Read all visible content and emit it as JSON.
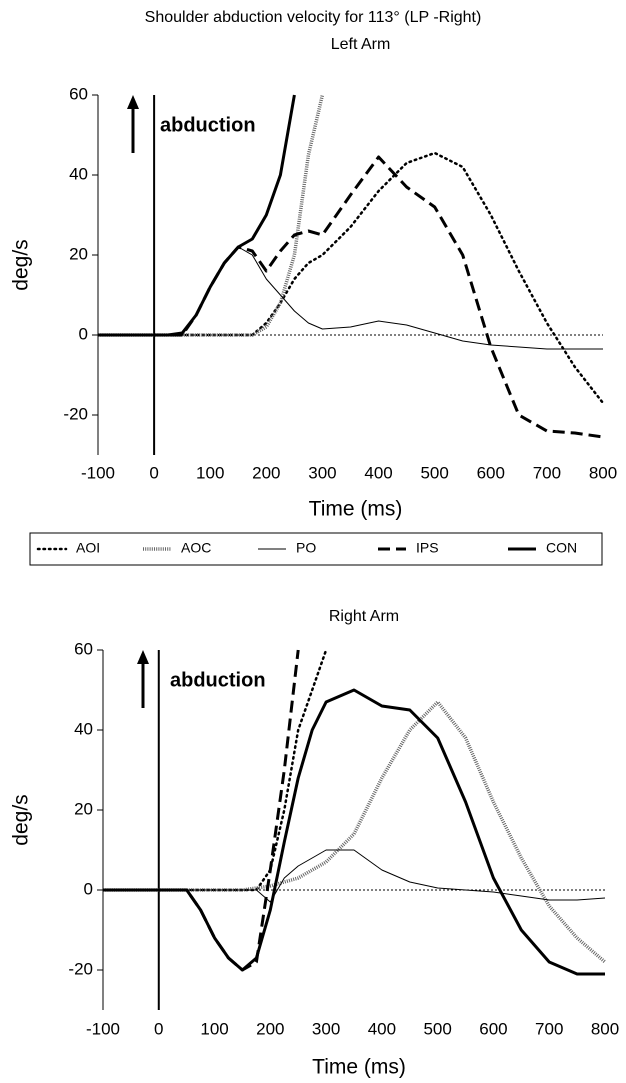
{
  "title": "Shoulder abduction velocity for 113° (LP -Right)",
  "chart_data": [
    {
      "type": "line",
      "title": "Left Arm",
      "xlabel": "Time (ms)",
      "ylabel": "deg/s",
      "annotation": "abduction",
      "x": [
        -100,
        -50,
        0,
        25,
        50,
        75,
        100,
        125,
        150,
        175,
        200,
        225,
        250,
        275,
        300,
        350,
        400,
        450,
        500,
        550,
        600,
        650,
        700,
        750,
        800
      ],
      "xlim": [
        -100,
        800
      ],
      "ylim": [
        -30,
        60
      ],
      "xticks": [
        -100,
        0,
        100,
        200,
        300,
        400,
        500,
        600,
        700,
        800
      ],
      "yticks": [
        -20,
        0,
        20,
        40,
        60
      ],
      "hlines": [
        0
      ],
      "vlines": [
        0
      ],
      "series": [
        {
          "name": "AOI",
          "style": "dotted",
          "color": "#000000",
          "values": [
            0,
            0,
            0,
            0,
            0,
            0,
            0,
            0,
            0,
            0,
            3,
            8,
            14,
            18,
            20,
            27,
            36,
            43,
            45.5,
            42,
            30,
            16,
            3,
            -8,
            -17
          ]
        },
        {
          "name": "AOC",
          "style": "hatched",
          "color": "#666666",
          "values": [
            0,
            0,
            0,
            0,
            0,
            0,
            0,
            0,
            0,
            0,
            2,
            8,
            20,
            45,
            60,
            null,
            null,
            null,
            null,
            null,
            null,
            null,
            null,
            null,
            null
          ]
        },
        {
          "name": "PO",
          "style": "thin",
          "color": "#000000",
          "values": [
            0,
            0,
            0,
            0,
            0,
            5,
            12,
            18,
            22,
            20,
            14,
            10,
            6,
            3,
            1.5,
            2,
            3.5,
            2.5,
            0.5,
            -1.5,
            -2.5,
            -3,
            -3.5,
            -3.5,
            -3.5
          ]
        },
        {
          "name": "IPS",
          "style": "dashed",
          "color": "#000000",
          "values": [
            0,
            0,
            0,
            0,
            0,
            5,
            12,
            18,
            22,
            21,
            16,
            21,
            25,
            26,
            25,
            35,
            44.5,
            37,
            32,
            20,
            -3,
            -20,
            -24,
            -24.5,
            -25.5
          ]
        },
        {
          "name": "CON",
          "style": "thick",
          "color": "#000000",
          "values": [
            0,
            0,
            0,
            0,
            0.5,
            5,
            12,
            18,
            22,
            24,
            30,
            40,
            60,
            null,
            null,
            null,
            null,
            null,
            null,
            null,
            null,
            null,
            null,
            null,
            null
          ]
        }
      ]
    },
    {
      "type": "line",
      "title": "Right Arm",
      "xlabel": "Time (ms)",
      "ylabel": "deg/s",
      "annotation": "abduction",
      "x": [
        -100,
        -50,
        0,
        25,
        50,
        75,
        100,
        125,
        150,
        175,
        200,
        225,
        250,
        275,
        300,
        350,
        400,
        450,
        500,
        550,
        600,
        650,
        700,
        750,
        800
      ],
      "xlim": [
        -100,
        800
      ],
      "ylim": [
        -30,
        60
      ],
      "xticks": [
        -100,
        0,
        100,
        200,
        300,
        400,
        500,
        600,
        700,
        800
      ],
      "yticks": [
        -20,
        0,
        20,
        40,
        60
      ],
      "hlines": [
        0
      ],
      "vlines": [
        0
      ],
      "series": [
        {
          "style": "dotted",
          "color": "#000000",
          "values": [
            0,
            0,
            0,
            0,
            0,
            0,
            0,
            0,
            0,
            0,
            5,
            20,
            40,
            50,
            60,
            null,
            null,
            null,
            null,
            null,
            null,
            null,
            null,
            null,
            null
          ]
        },
        {
          "style": "hatched",
          "color": "#666666",
          "values": [
            0,
            0,
            0,
            0,
            0,
            0,
            0,
            0,
            0,
            0.5,
            1,
            2,
            3,
            5,
            7,
            14,
            28,
            40,
            47,
            38,
            22,
            8,
            -4,
            -12,
            -18
          ]
        },
        {
          "style": "thin",
          "color": "#000000",
          "values": [
            0,
            0,
            0,
            0,
            0,
            0,
            0,
            0,
            0,
            0,
            -3,
            3,
            6,
            8,
            10,
            10,
            5,
            2,
            0.5,
            0,
            -0.5,
            -1.5,
            -2.5,
            -2.5,
            -2
          ]
        },
        {
          "style": "dashed",
          "color": "#000000",
          "values": [
            0,
            0,
            0,
            0,
            0,
            -5,
            -12,
            -17,
            -20,
            -18,
            5,
            30,
            60,
            null,
            null,
            null,
            null,
            null,
            null,
            null,
            null,
            null,
            null,
            null,
            null
          ]
        },
        {
          "style": "thick",
          "color": "#000000",
          "values": [
            0,
            0,
            0,
            0,
            0,
            -5,
            -12,
            -17,
            -20,
            -17,
            -5,
            12,
            28,
            40,
            47,
            50,
            46,
            45,
            38,
            22,
            3,
            -10,
            -18,
            -21,
            -21
          ]
        }
      ]
    }
  ]
}
